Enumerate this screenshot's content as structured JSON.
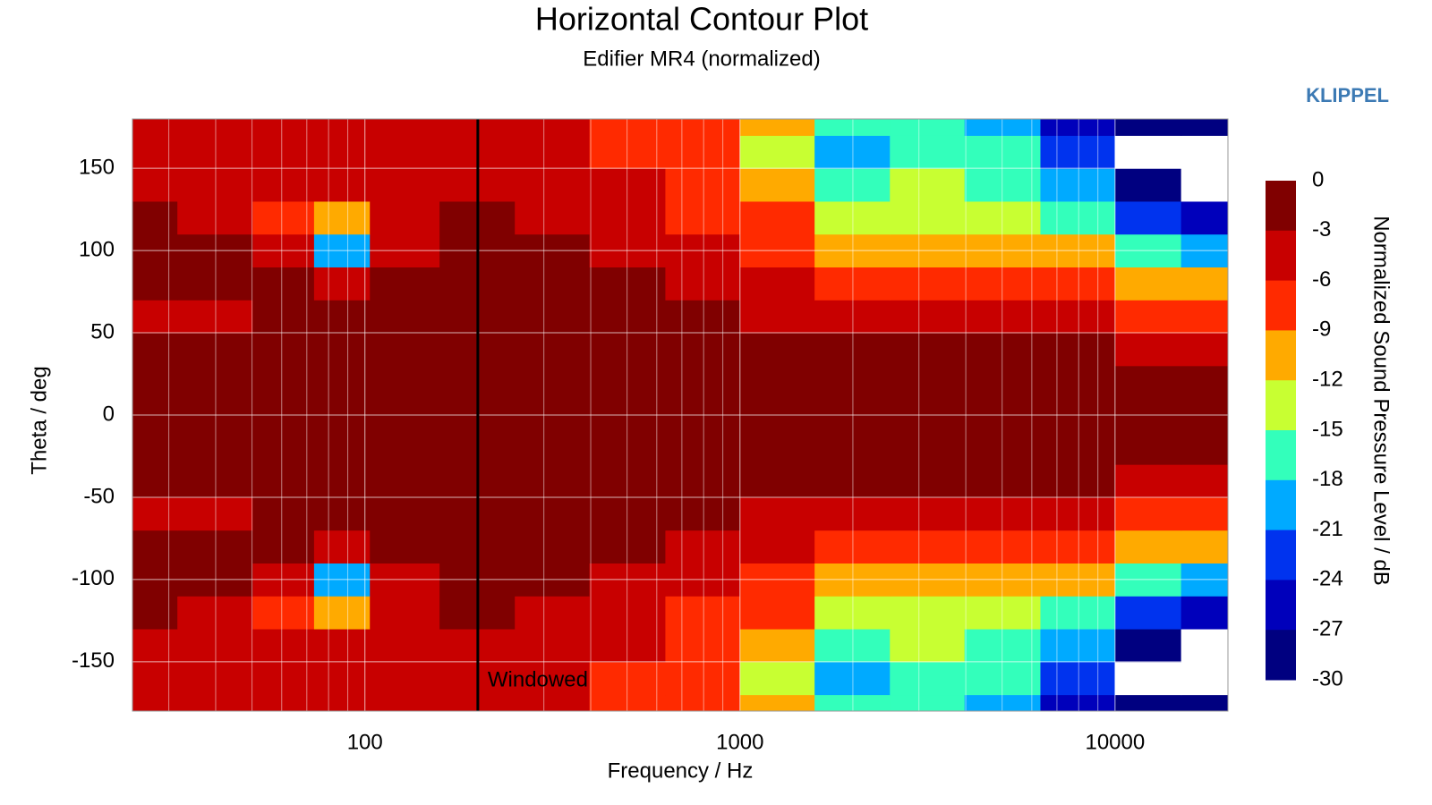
{
  "chart_data": {
    "type": "contour",
    "title": "Horizontal Contour Plot",
    "subtitle": "Edifier MR4 (normalized)",
    "brand": "KLIPPEL",
    "x_label": "Frequency / Hz",
    "y_label": "Theta / deg",
    "colorbar_label": "Normalized Sound Pressure Level / dB",
    "x_scale": "log",
    "xlim": [
      24,
      20000
    ],
    "ylim": [
      -180,
      180
    ],
    "xticks": [
      100,
      1000,
      10000
    ],
    "xminorticks": [
      30,
      40,
      50,
      60,
      70,
      80,
      90,
      200,
      300,
      400,
      500,
      600,
      700,
      800,
      900,
      2000,
      3000,
      4000,
      5000,
      6000,
      7000,
      8000,
      9000
    ],
    "yticks": [
      150,
      100,
      50,
      0,
      -50,
      -100,
      -150
    ],
    "grid": true,
    "annotations": [
      {
        "text": "Windowed",
        "x": 200
      }
    ],
    "levels": [
      0,
      -3,
      -6,
      -9,
      -12,
      -15,
      -18,
      -21,
      -24,
      -27,
      -30
    ],
    "level_colors": [
      "#800000",
      "#c80000",
      "#ff2a00",
      "#ffaa00",
      "#c8ff32",
      "#33ffbb",
      "#00aaff",
      "#0033ee",
      "#0000bb",
      "#000080"
    ],
    "under_color": "#ffffff",
    "x": [
      25,
      40,
      63,
      85,
      125,
      200,
      315,
      500,
      800,
      1250,
      2000,
      3150,
      5000,
      8000,
      12500,
      18000
    ],
    "y": [
      -180,
      -160,
      -140,
      -120,
      -100,
      -80,
      -60,
      -40,
      -20,
      0,
      20,
      40,
      60,
      80,
      100,
      120,
      140,
      160,
      180
    ],
    "z": [
      [
        -4,
        -4,
        -4,
        -5,
        -4,
        -5,
        -6,
        -7,
        -9,
        -12,
        -16,
        -17,
        -20,
        -25,
        -30,
        -30
      ],
      [
        -4,
        -5,
        -6,
        -5,
        -5,
        -4,
        -5,
        -7,
        -9,
        -14,
        -20,
        -17,
        -18,
        -22,
        -32,
        -32
      ],
      [
        -4,
        -4,
        -5,
        -5,
        -4,
        -4,
        -5,
        -6,
        -8,
        -12,
        -16,
        -14,
        -16,
        -19,
        -28,
        -32
      ],
      [
        -2,
        -5,
        -7,
        -11,
        -4,
        -2,
        -4,
        -5,
        -7,
        -9,
        -13,
        -14,
        -14,
        -16,
        -22,
        -26
      ],
      [
        -3,
        -3,
        -5,
        -20,
        -5,
        -1,
        -3,
        -4,
        -5,
        -7,
        -10,
        -12,
        -11,
        -12,
        -16,
        -20
      ],
      [
        -2,
        -2,
        -2,
        -4,
        -2,
        -1,
        -2,
        -2,
        -4,
        -6,
        -7,
        -8,
        -9,
        -9,
        -12,
        -12
      ],
      [
        -4,
        -4,
        -3,
        -2,
        -1,
        -1,
        -1,
        -1,
        -2,
        -4,
        -5,
        -5,
        -6,
        -6,
        -8,
        -8
      ],
      [
        -2,
        -2,
        -2,
        -1,
        -1,
        -1,
        -1,
        -1,
        -1,
        -2,
        -2,
        -3,
        -3,
        -3,
        -4,
        -5
      ],
      [
        -2,
        -2,
        -2,
        -1,
        -1,
        -1,
        -1,
        -1,
        -1,
        -1,
        -1,
        -1,
        -2,
        -2,
        -2,
        -2
      ],
      [
        -2,
        -2,
        -2,
        -1,
        -1,
        -1,
        -1,
        -1,
        -1,
        -1,
        -1,
        -1,
        -1,
        -1,
        -1,
        -1
      ],
      [
        -2,
        -2,
        -2,
        -1,
        -1,
        -1,
        -1,
        -1,
        -1,
        -1,
        -1,
        -1,
        -2,
        -2,
        -2,
        -2
      ],
      [
        -2,
        -2,
        -2,
        -1,
        -1,
        -1,
        -1,
        -1,
        -1,
        -2,
        -2,
        -3,
        -3,
        -3,
        -4,
        -5
      ],
      [
        -4,
        -4,
        -3,
        -2,
        -1,
        -1,
        -1,
        -1,
        -2,
        -4,
        -5,
        -5,
        -6,
        -6,
        -8,
        -8
      ],
      [
        -2,
        -2,
        -2,
        -4,
        -2,
        -1,
        -2,
        -2,
        -4,
        -6,
        -7,
        -8,
        -9,
        -9,
        -12,
        -12
      ],
      [
        -3,
        -3,
        -5,
        -20,
        -5,
        -1,
        -3,
        -4,
        -5,
        -7,
        -10,
        -12,
        -11,
        -12,
        -16,
        -20
      ],
      [
        -2,
        -5,
        -7,
        -11,
        -4,
        -2,
        -4,
        -5,
        -7,
        -9,
        -13,
        -14,
        -14,
        -16,
        -22,
        -26
      ],
      [
        -4,
        -4,
        -5,
        -5,
        -4,
        -4,
        -5,
        -6,
        -8,
        -12,
        -16,
        -14,
        -16,
        -19,
        -28,
        -32
      ],
      [
        -4,
        -5,
        -6,
        -5,
        -5,
        -4,
        -5,
        -7,
        -9,
        -14,
        -20,
        -17,
        -18,
        -22,
        -32,
        -32
      ],
      [
        -4,
        -4,
        -4,
        -5,
        -4,
        -5,
        -6,
        -7,
        -9,
        -12,
        -16,
        -17,
        -20,
        -25,
        -30,
        -30
      ]
    ]
  }
}
